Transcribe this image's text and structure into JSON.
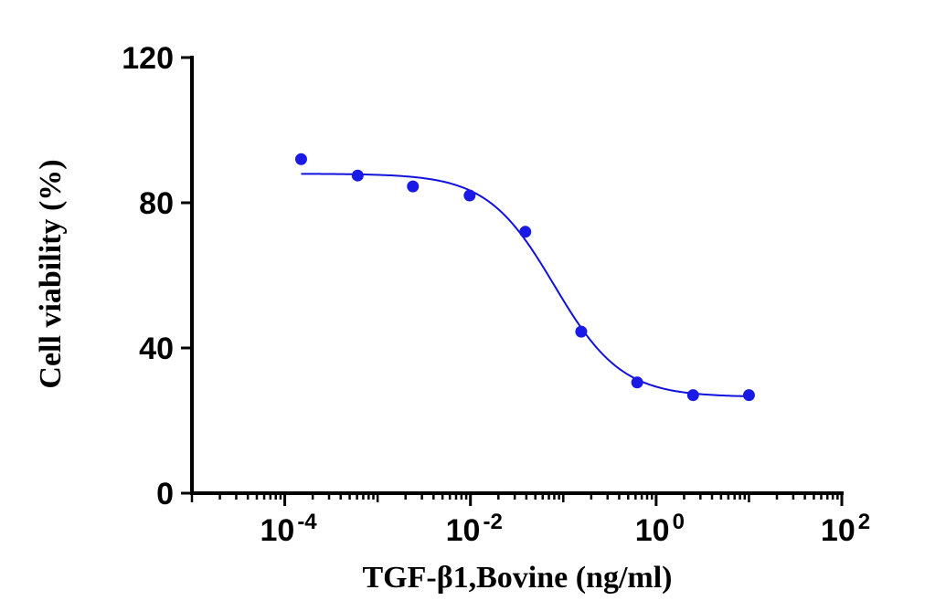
{
  "chart_data": {
    "type": "scatter",
    "title": "",
    "xlabel": "TGF-β1,Bovine (ng/ml)",
    "ylabel": "Cell viability (%)",
    "xscale": "log10",
    "xlim": [
      1e-05,
      100
    ],
    "ylim": [
      0,
      120
    ],
    "yticks": [
      0,
      40,
      80,
      120
    ],
    "ytick_labels": [
      "0",
      "40",
      "80",
      "120"
    ],
    "xticks": [
      0.0001,
      0.01,
      1,
      100
    ],
    "xtick_labels": [
      {
        "base": "10",
        "exp": "-4"
      },
      {
        "base": "10",
        "exp": "-2"
      },
      {
        "base": "10",
        "exp": "0"
      },
      {
        "base": "10",
        "exp": "2"
      }
    ],
    "series": [
      {
        "name": "TGF-β1,Bovine",
        "color": "#1a1ae6",
        "x": [
          0.00015,
          0.00061,
          0.0024,
          0.0098,
          0.039,
          0.156,
          0.625,
          2.5,
          10
        ],
        "y": [
          92,
          87.5,
          84.5,
          82,
          72,
          44.5,
          30.5,
          27,
          27
        ]
      }
    ],
    "fit": {
      "model": "four-parameter logistic",
      "color": "#1111dd",
      "top": 88,
      "bottom": 26.5,
      "ec50": 0.08,
      "hill_slope": -1.2,
      "x_range": [
        0.00015,
        10
      ]
    }
  }
}
